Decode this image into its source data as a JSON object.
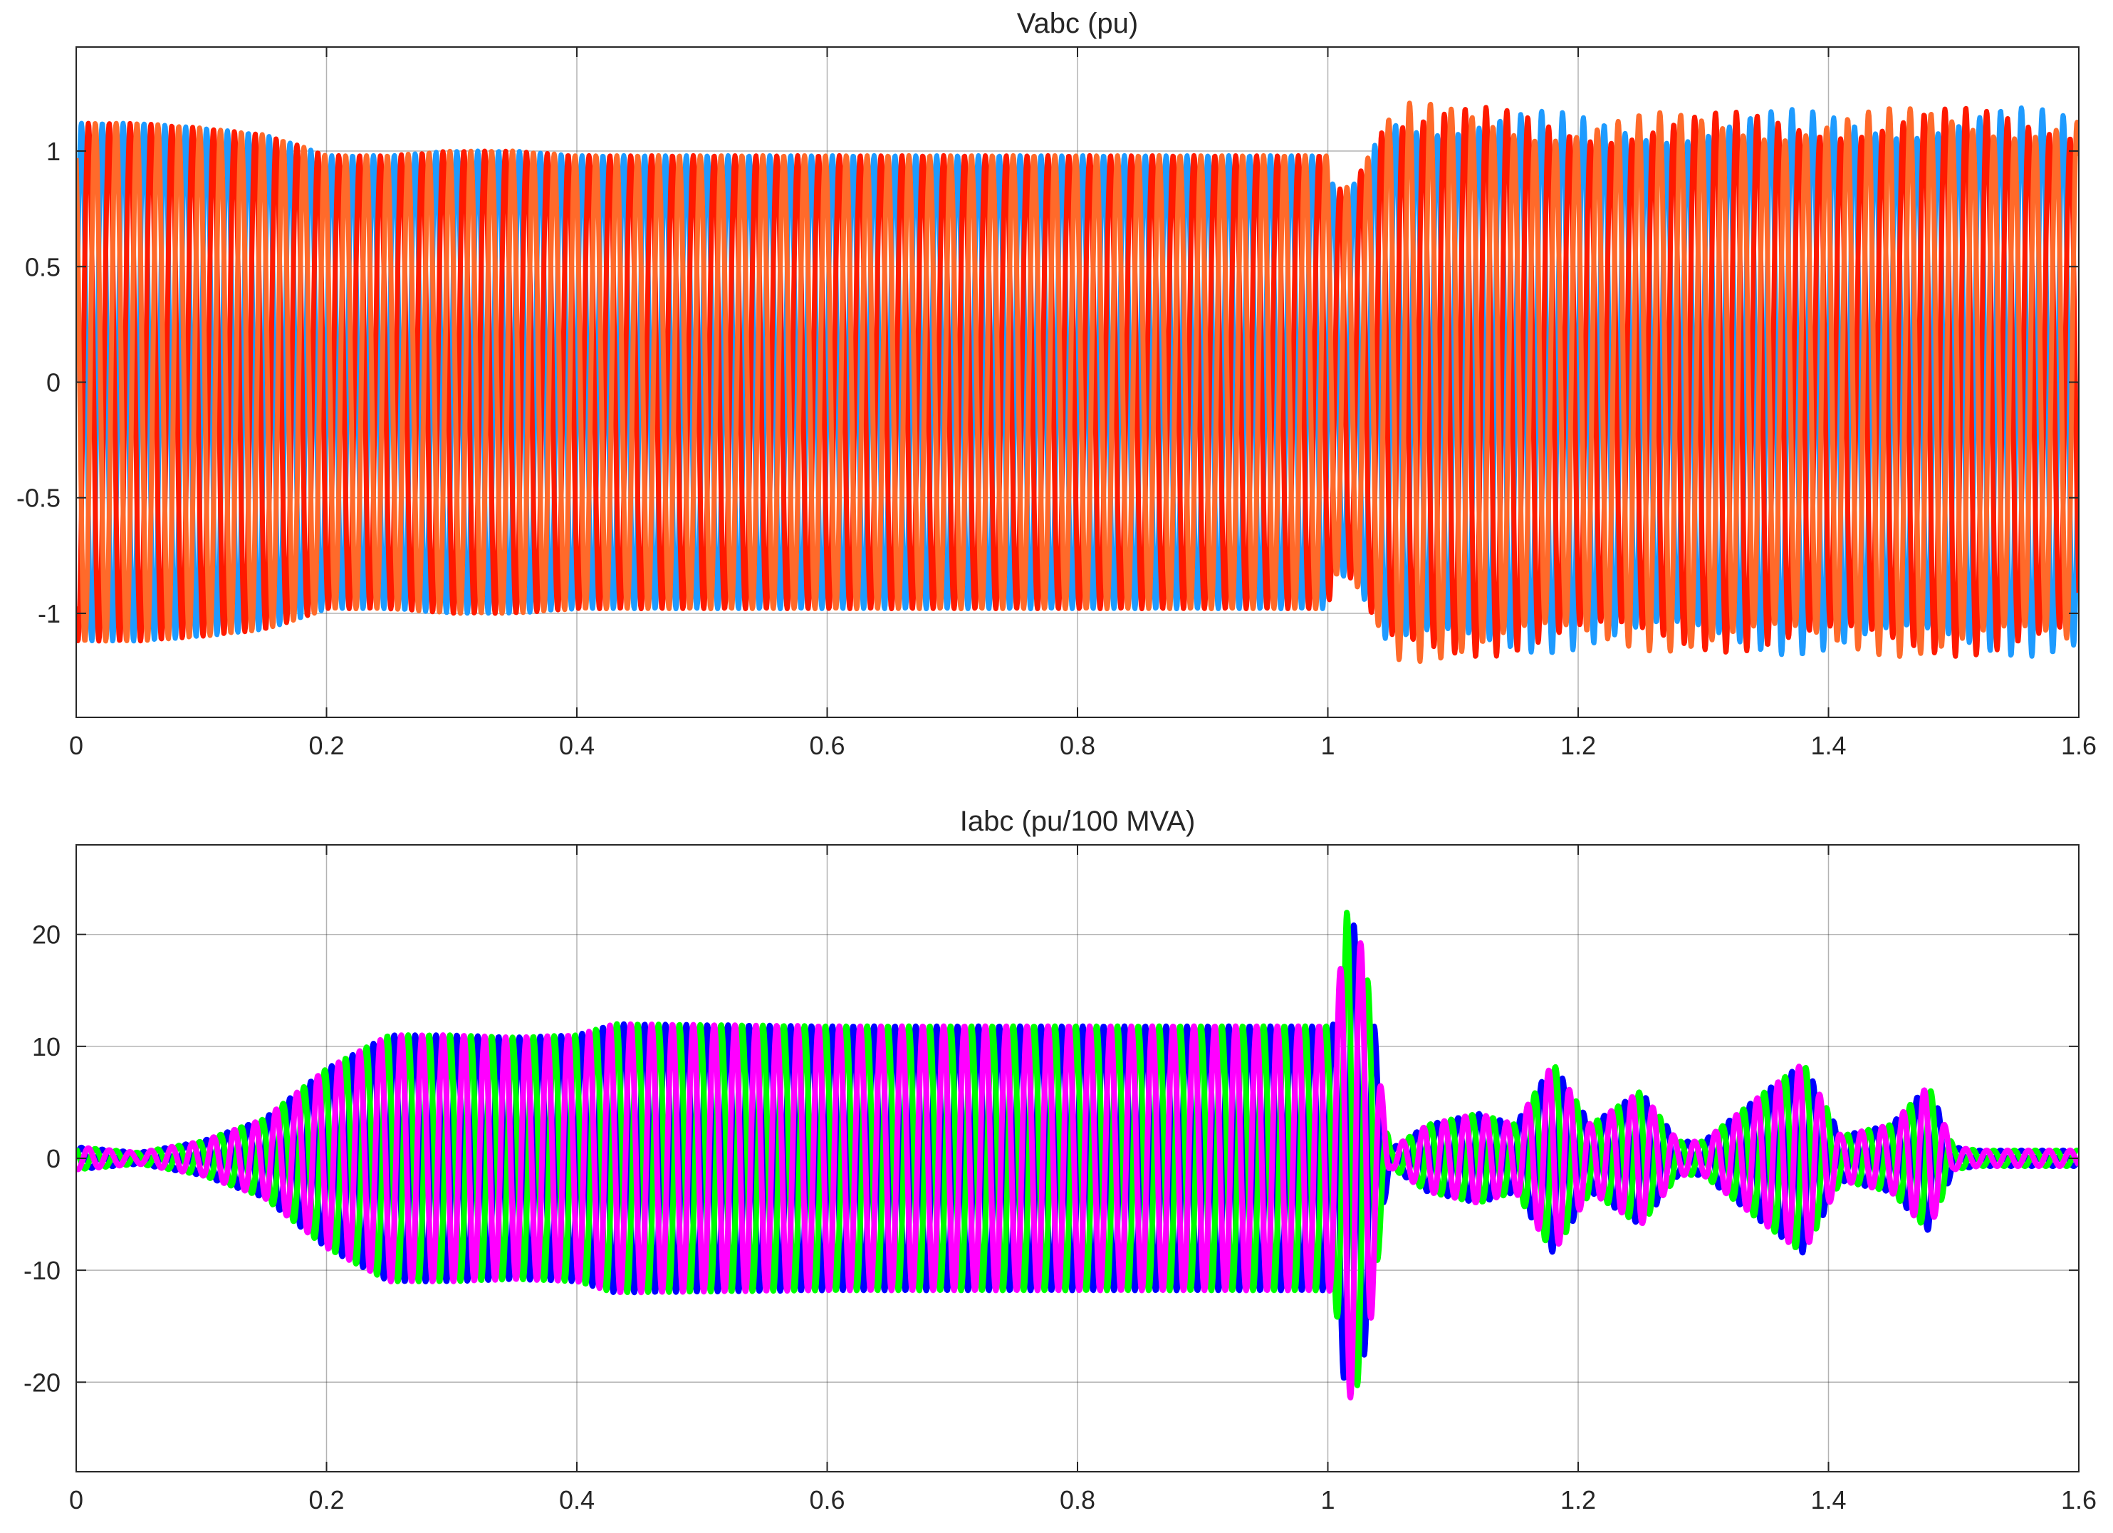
{
  "chart_data": [
    {
      "type": "line",
      "title": "Vabc  (pu)",
      "xlabel": "",
      "ylabel": "",
      "xlim": [
        0,
        1.6
      ],
      "ylim": [
        -1.45,
        1.45
      ],
      "xticks": [
        0,
        0.2,
        0.4,
        0.6,
        0.8,
        1,
        1.2,
        1.4,
        1.6
      ],
      "xtick_labels": [
        "0",
        "0.2",
        "0.4",
        "0.6",
        "0.8",
        "1",
        "1.2",
        "1.4",
        "1.6"
      ],
      "yticks": [
        1,
        0.5,
        0,
        -0.5,
        -1
      ],
      "ytick_labels": [
        "1",
        "0.5",
        "0",
        "-0.5",
        "-1"
      ],
      "grid": true,
      "series_colors": [
        "#1e9bff",
        "#ff1a00",
        "#ff6a2a"
      ],
      "frequency_hz": 60,
      "phase_offsets_deg": [
        0,
        -120,
        120
      ],
      "envelope_t": [
        0,
        0.05,
        0.1,
        0.15,
        0.18,
        0.2,
        0.25,
        0.3,
        0.35,
        0.4,
        0.6,
        0.8,
        0.95,
        1.0,
        1.005,
        1.02,
        1.04,
        1.05,
        1.1,
        1.2,
        1.3,
        1.4,
        1.5,
        1.6
      ],
      "envelope_amp": [
        1.12,
        1.12,
        1.1,
        1.07,
        1.02,
        0.98,
        0.98,
        1.0,
        1.0,
        0.98,
        0.98,
        0.98,
        0.98,
        0.98,
        0.83,
        0.85,
        1.05,
        1.15,
        1.13,
        1.1,
        1.1,
        1.12,
        1.12,
        1.12
      ],
      "modulation_depth_after_t": 1.05,
      "modulation_depth": 0.06
    },
    {
      "type": "line",
      "title": "Iabc (pu/100 MVA)",
      "xlabel": "",
      "ylabel": "",
      "xlim": [
        0,
        1.6
      ],
      "ylim": [
        -28,
        28
      ],
      "xticks": [
        0,
        0.2,
        0.4,
        0.6,
        0.8,
        1,
        1.2,
        1.4,
        1.6
      ],
      "xtick_labels": [
        "0",
        "0.2",
        "0.4",
        "0.6",
        "0.8",
        "1",
        "1.2",
        "1.4",
        "1.6"
      ],
      "yticks": [
        20,
        10,
        0,
        -10,
        -20
      ],
      "ytick_labels": [
        "20",
        "10",
        "0",
        "-10",
        "-20"
      ],
      "grid": true,
      "series_colors": [
        "#0000ff",
        "#00ff00",
        "#ff00ff"
      ],
      "frequency_hz": 60,
      "phase_offsets_deg": [
        0,
        120,
        -120
      ],
      "envelope_t": [
        0,
        0.05,
        0.1,
        0.15,
        0.2,
        0.25,
        0.3,
        0.35,
        0.4,
        0.43,
        0.6,
        0.8,
        1.0,
        1.005,
        1.015,
        1.025,
        1.035,
        1.045,
        1.05,
        1.08,
        1.12,
        1.15,
        1.18,
        1.21,
        1.25,
        1.28,
        1.3,
        1.35,
        1.38,
        1.41,
        1.45,
        1.48,
        1.5,
        1.52,
        1.6
      ],
      "envelope_amp": [
        1,
        0.5,
        1.5,
        3.5,
        8,
        11,
        11,
        10.8,
        11,
        12,
        11.8,
        11.8,
        11.8,
        12,
        22,
        20,
        14,
        4,
        0.8,
        3,
        4,
        3,
        8.5,
        3,
        6,
        1.5,
        1.5,
        6,
        8.5,
        2,
        3,
        6.5,
        1,
        0.7,
        0.7
      ]
    }
  ]
}
